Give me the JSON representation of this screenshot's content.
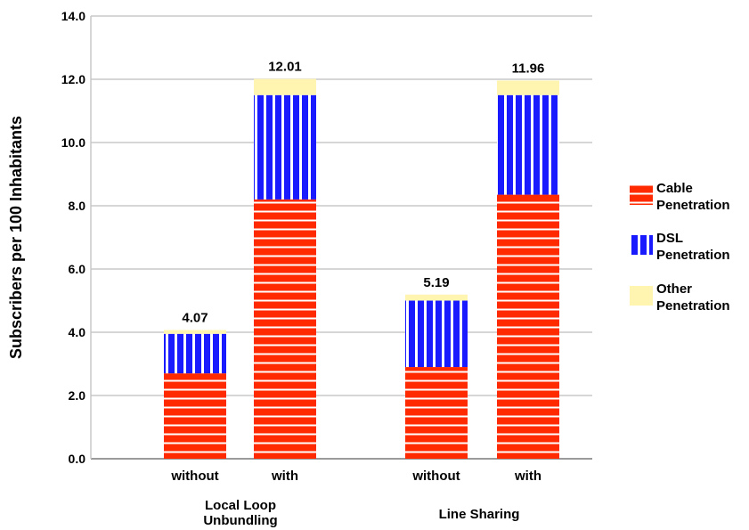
{
  "chart_data": {
    "type": "bar",
    "stacked": true,
    "ylabel": "Subscribers per 100 Inhabitants",
    "ylim": [
      0,
      14
    ],
    "yticks": [
      "0.0",
      "2.0",
      "4.0",
      "6.0",
      "8.0",
      "10.0",
      "12.0",
      "14.0"
    ],
    "grid": true,
    "legend_position": "right",
    "groups": [
      {
        "label": "Local Loop\nUnbundling",
        "categories": [
          "without",
          "with"
        ]
      },
      {
        "label": "Line Sharing",
        "categories": [
          "without",
          "with"
        ]
      }
    ],
    "bars": [
      {
        "group": 0,
        "category": "without",
        "total_label": "4.07",
        "values": {
          "cable": 2.7,
          "dsl": 1.25,
          "other": 0.12
        }
      },
      {
        "group": 0,
        "category": "with",
        "total_label": "12.01",
        "values": {
          "cable": 8.2,
          "dsl": 3.3,
          "other": 0.51
        }
      },
      {
        "group": 1,
        "category": "without",
        "total_label": "5.19",
        "values": {
          "cable": 2.9,
          "dsl": 2.1,
          "other": 0.19
        }
      },
      {
        "group": 1,
        "category": "with",
        "total_label": "11.96",
        "values": {
          "cable": 8.35,
          "dsl": 3.15,
          "other": 0.46
        }
      }
    ],
    "series": [
      {
        "key": "cable",
        "name": "Cable Penetration",
        "name_lines": [
          "Cable",
          "Penetration"
        ],
        "color": "#ff2a00",
        "stripe": "#ffffff",
        "pattern": "horizontal-stripes"
      },
      {
        "key": "dsl",
        "name": "DSL Penetration",
        "name_lines": [
          "DSL",
          "Penetration"
        ],
        "color": "#1a1aff",
        "stripe": "#ffffff",
        "pattern": "vertical-stripes"
      },
      {
        "key": "other",
        "name": "Other Penetration",
        "name_lines": [
          "Other",
          "Penetration"
        ],
        "color": "#fff5b0",
        "pattern": "solid"
      }
    ]
  }
}
